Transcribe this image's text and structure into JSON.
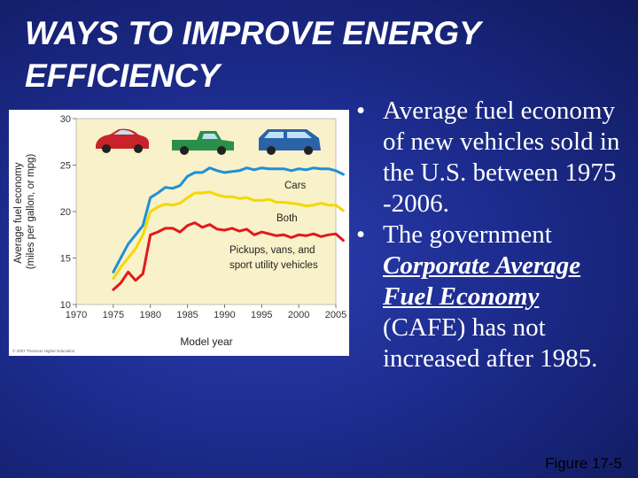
{
  "slide": {
    "title_line1": "WAYS TO IMPROVE ENERGY",
    "title_line2": "EFFICIENCY",
    "figure_ref": "Figure 17-5"
  },
  "bullets": {
    "b1": "Average fuel economy of new vehicles sold in the U.S. between 1975 -2006.",
    "b2_pre": "The government ",
    "b2_term": "Corporate Average Fuel Economy",
    "b2_post": " (CAFE) has not increased after 1985."
  },
  "chart_data": {
    "type": "line",
    "title": "",
    "xlabel": "Model year",
    "ylabel": "Average fuel economy (miles per gallon, or mpg)",
    "xlim": [
      1970,
      2005
    ],
    "ylim": [
      10,
      30
    ],
    "xticks": [
      1970,
      1975,
      1980,
      1985,
      1990,
      1995,
      2000,
      2005
    ],
    "yticks": [
      10,
      15,
      20,
      25,
      30
    ],
    "copyright": "© 2007 Thomson Higher Education",
    "x": [
      1975,
      1976,
      1977,
      1978,
      1979,
      1980,
      1981,
      1982,
      1983,
      1984,
      1985,
      1986,
      1987,
      1988,
      1989,
      1990,
      1991,
      1992,
      1993,
      1994,
      1995,
      1996,
      1997,
      1998,
      1999,
      2000,
      2001,
      2002,
      2003,
      2004,
      2005,
      2006
    ],
    "series": [
      {
        "name": "Cars",
        "color": "#1e90d6",
        "values": [
          13.5,
          15,
          16.5,
          17.5,
          18.5,
          21.5,
          22,
          22.6,
          22.5,
          22.8,
          23.8,
          24.2,
          24.2,
          24.7,
          24.4,
          24.2,
          24.3,
          24.4,
          24.7,
          24.5,
          24.7,
          24.6,
          24.6,
          24.6,
          24.4,
          24.6,
          24.5,
          24.7,
          24.6,
          24.6,
          24.4,
          24
        ]
      },
      {
        "name": "Both",
        "color": "#f5d800",
        "values": [
          12.8,
          14,
          15,
          16,
          17.5,
          20,
          20.5,
          20.8,
          20.7,
          20.9,
          21.5,
          22,
          22,
          22.1,
          21.8,
          21.6,
          21.6,
          21.4,
          21.5,
          21.2,
          21.2,
          21.3,
          21,
          21,
          20.9,
          20.8,
          20.6,
          20.7,
          20.9,
          20.7,
          20.7,
          20.1
        ]
      },
      {
        "name": "Pickups, vans, and sport utility vehicles",
        "color": "#e01a1a",
        "values": [
          11.6,
          12.3,
          13.5,
          12.6,
          13.3,
          17.5,
          17.8,
          18.2,
          18.2,
          17.8,
          18.5,
          18.8,
          18.3,
          18.6,
          18.1,
          18,
          18.2,
          17.9,
          18.1,
          17.5,
          17.8,
          17.6,
          17.4,
          17.5,
          17.2,
          17.5,
          17.4,
          17.6,
          17.3,
          17.5,
          17.6,
          16.9
        ]
      }
    ],
    "grid": false,
    "legend": "inline labels"
  }
}
